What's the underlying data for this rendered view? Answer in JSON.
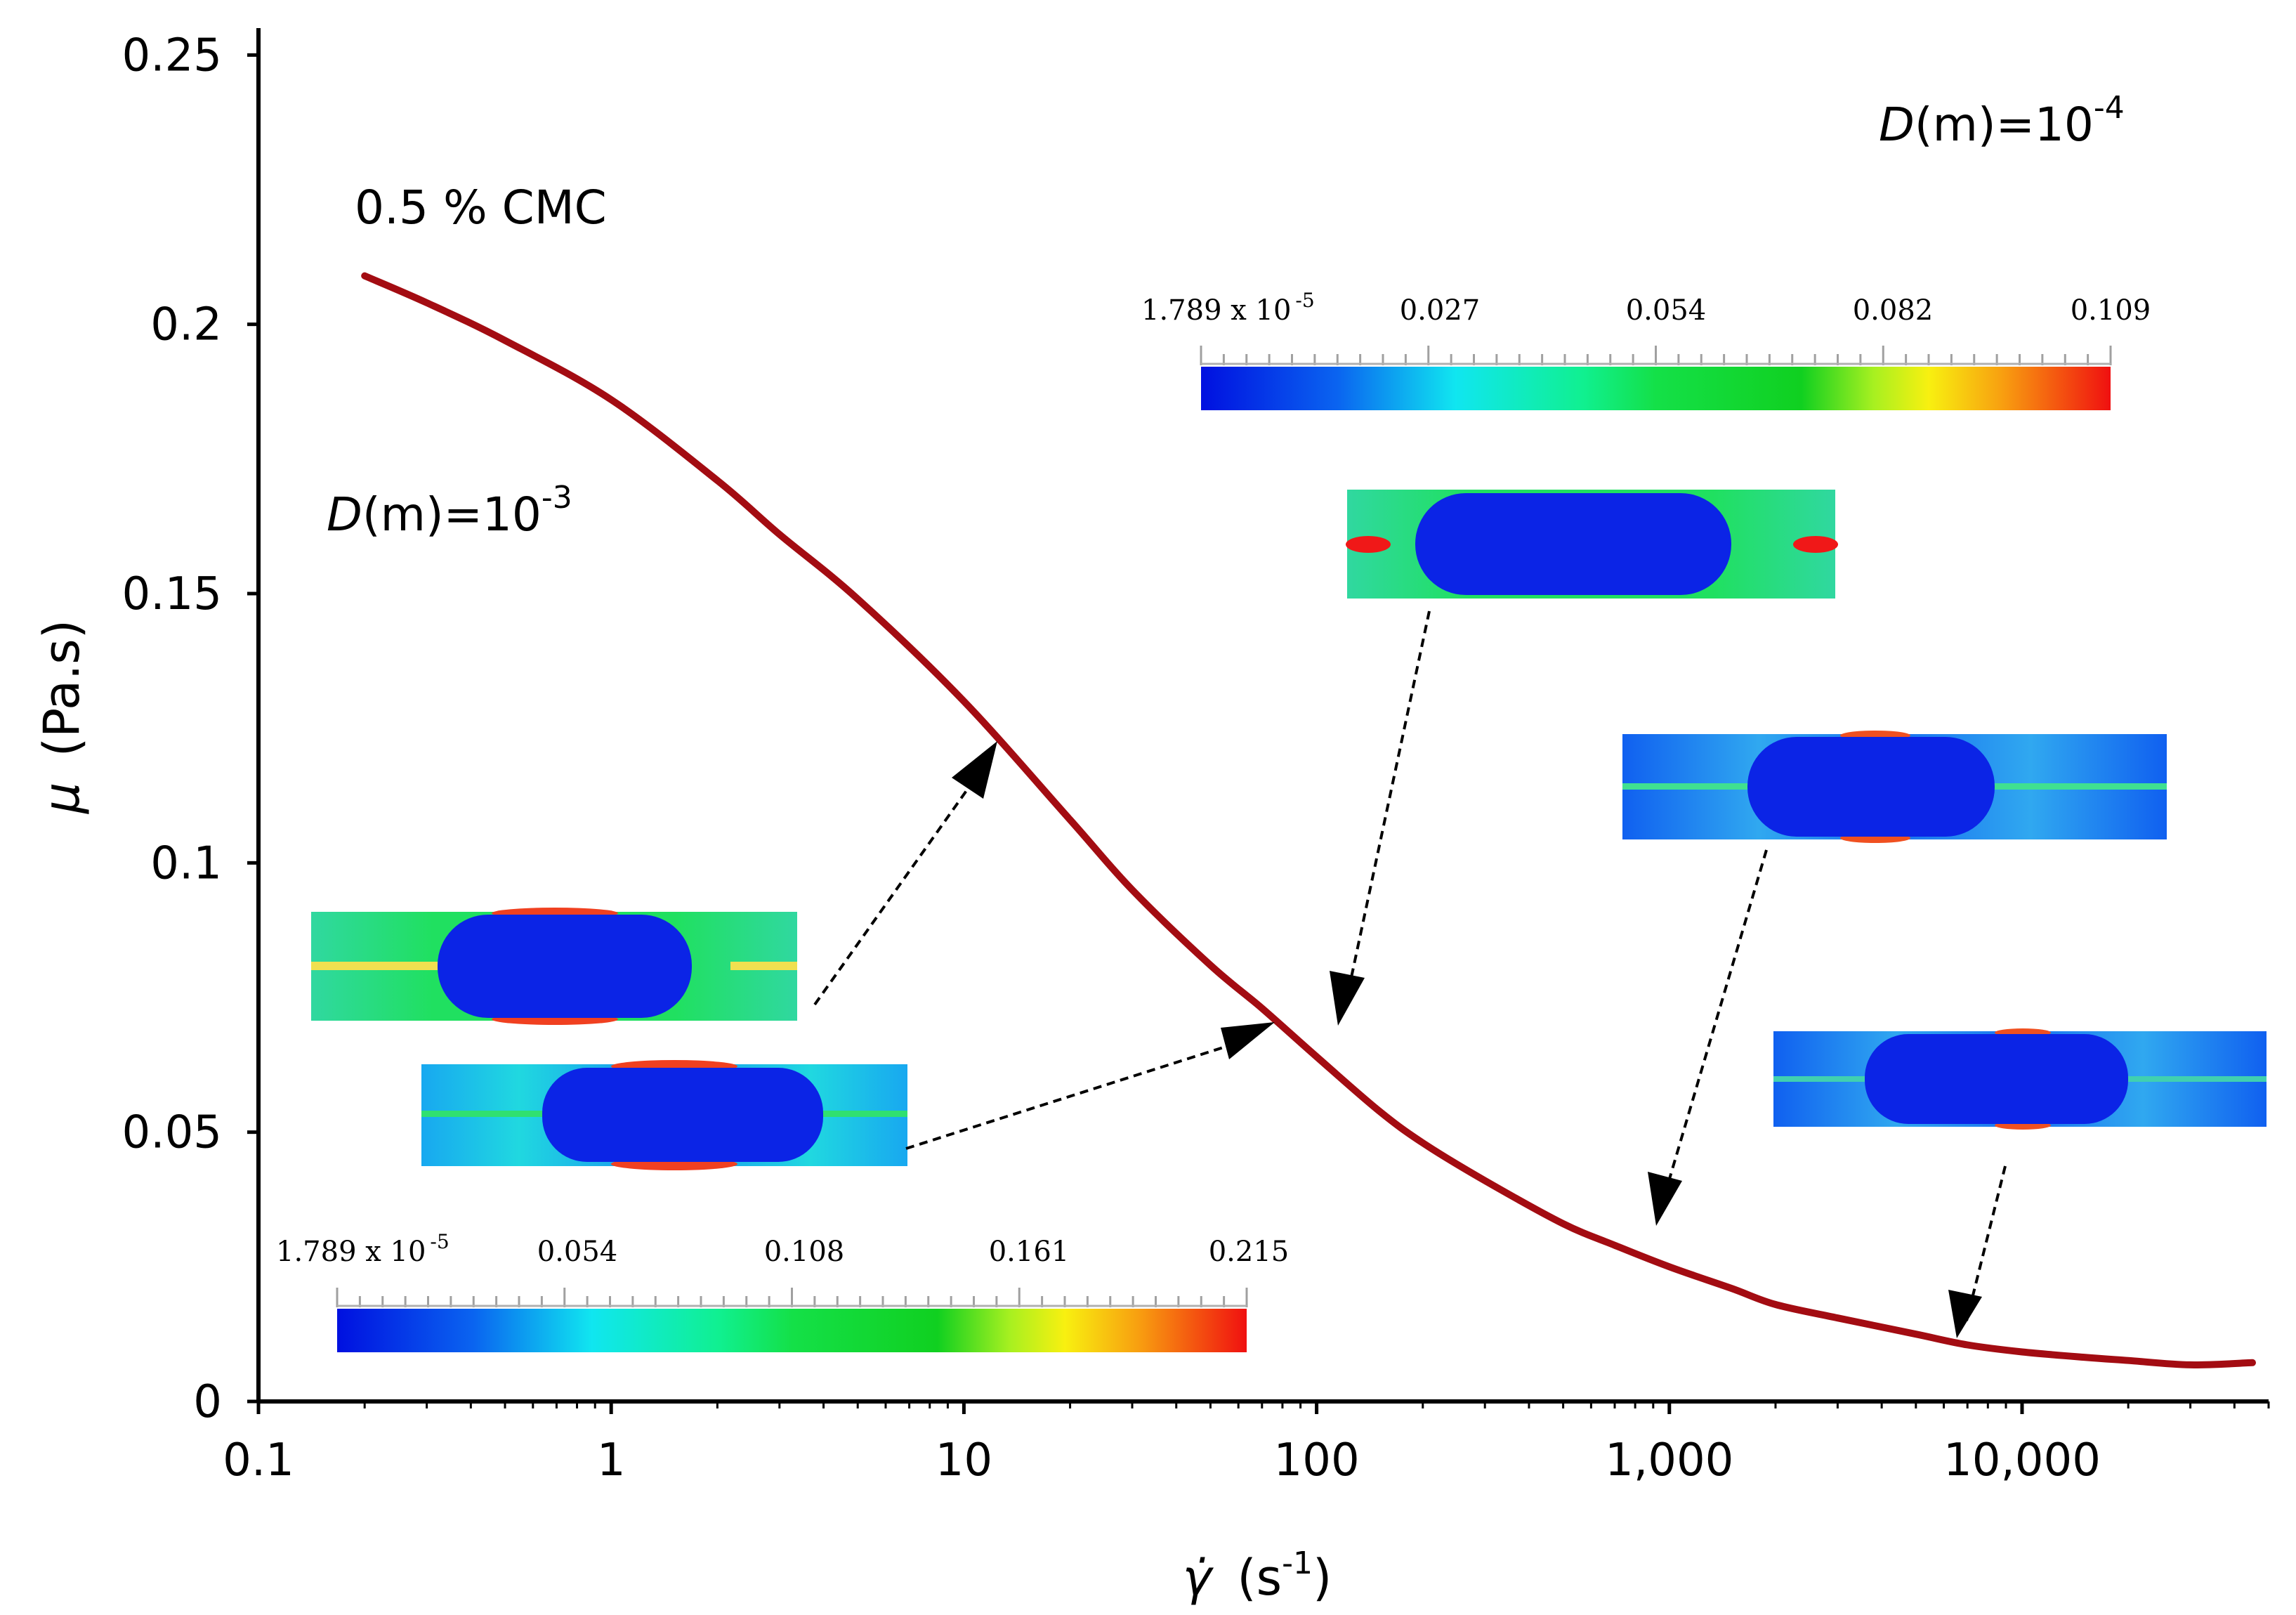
{
  "chart_data": {
    "type": "line",
    "title": "",
    "series_label": "0.5 % CMC",
    "xlabel": "γ̇ (s-1)",
    "xlabel_symbol": "γ̇",
    "xlabel_unit": "s",
    "xlabel_exponent": "-1",
    "ylabel": "μ (Pa.s)",
    "ylabel_symbol": "μ",
    "ylabel_unit": "(Pa.s)",
    "xscale": "log",
    "xlim": [
      0.1,
      50000
    ],
    "ylim": [
      0,
      0.255
    ],
    "x_ticks": [
      0.1,
      1,
      10,
      100,
      1000,
      10000
    ],
    "x_tick_labels": [
      "0.1",
      "1",
      "10",
      "100",
      "1,000",
      "10,000"
    ],
    "y_ticks": [
      0,
      0.05,
      0.1,
      0.15,
      0.2,
      0.25
    ],
    "y_tick_labels": [
      "0",
      "0.05",
      "0.1",
      "0.15",
      "0.2",
      "0.25"
    ],
    "series": [
      {
        "name": "0.5 % CMC",
        "color": "#a30c12",
        "x": [
          0.2,
          0.3,
          0.5,
          1,
          2,
          3,
          5,
          10,
          20,
          30,
          50,
          70,
          100,
          150,
          200,
          300,
          500,
          700,
          1000,
          1500,
          2000,
          3000,
          5000,
          7000,
          10000,
          15000,
          20000,
          30000,
          45000
        ],
        "y": [
          0.209,
          0.204,
          0.197,
          0.186,
          0.171,
          0.161,
          0.149,
          0.13,
          0.108,
          0.095,
          0.081,
          0.073,
          0.064,
          0.054,
          0.048,
          0.041,
          0.033,
          0.029,
          0.025,
          0.021,
          0.018,
          0.0155,
          0.0125,
          0.0105,
          0.0092,
          0.0082,
          0.0076,
          0.0068,
          0.0072
        ]
      }
    ],
    "annotations": [
      {
        "text_prefix": "D",
        "text_main": "(m)=10",
        "exponent": "-3",
        "location": "left"
      },
      {
        "text_prefix": "D",
        "text_main": "(m)=10",
        "exponent": "-4",
        "location": "top-right"
      }
    ],
    "colorbars": [
      {
        "name": "colorbar-D1e-3",
        "min_label": "1.789 x 10",
        "min_exponent": "-5",
        "tick_labels": [
          "0.054",
          "0.108",
          "0.161",
          "0.215"
        ]
      },
      {
        "name": "colorbar-D1e-4",
        "min_label": "1.789 x 10",
        "min_exponent": "-5",
        "tick_labels": [
          "0.027",
          "0.054",
          "0.082",
          "0.109"
        ]
      }
    ],
    "insets": [
      {
        "name": "inset-droplet-1",
        "points_to_x": 12,
        "points_to_y": 0.122
      },
      {
        "name": "inset-droplet-2",
        "points_to_x": 75,
        "points_to_y": 0.072
      },
      {
        "name": "inset-droplet-3",
        "points_to_x": 110,
        "points_to_y": 0.072
      },
      {
        "name": "inset-droplet-4",
        "points_to_x": 1000,
        "points_to_y": 0.035
      },
      {
        "name": "inset-droplet-5",
        "points_to_x": 6500,
        "points_to_y": 0.014
      }
    ],
    "colors": {
      "curve": "#a30c12",
      "droplet": "#0b24e6"
    },
    "grid": false,
    "legend": "none"
  }
}
